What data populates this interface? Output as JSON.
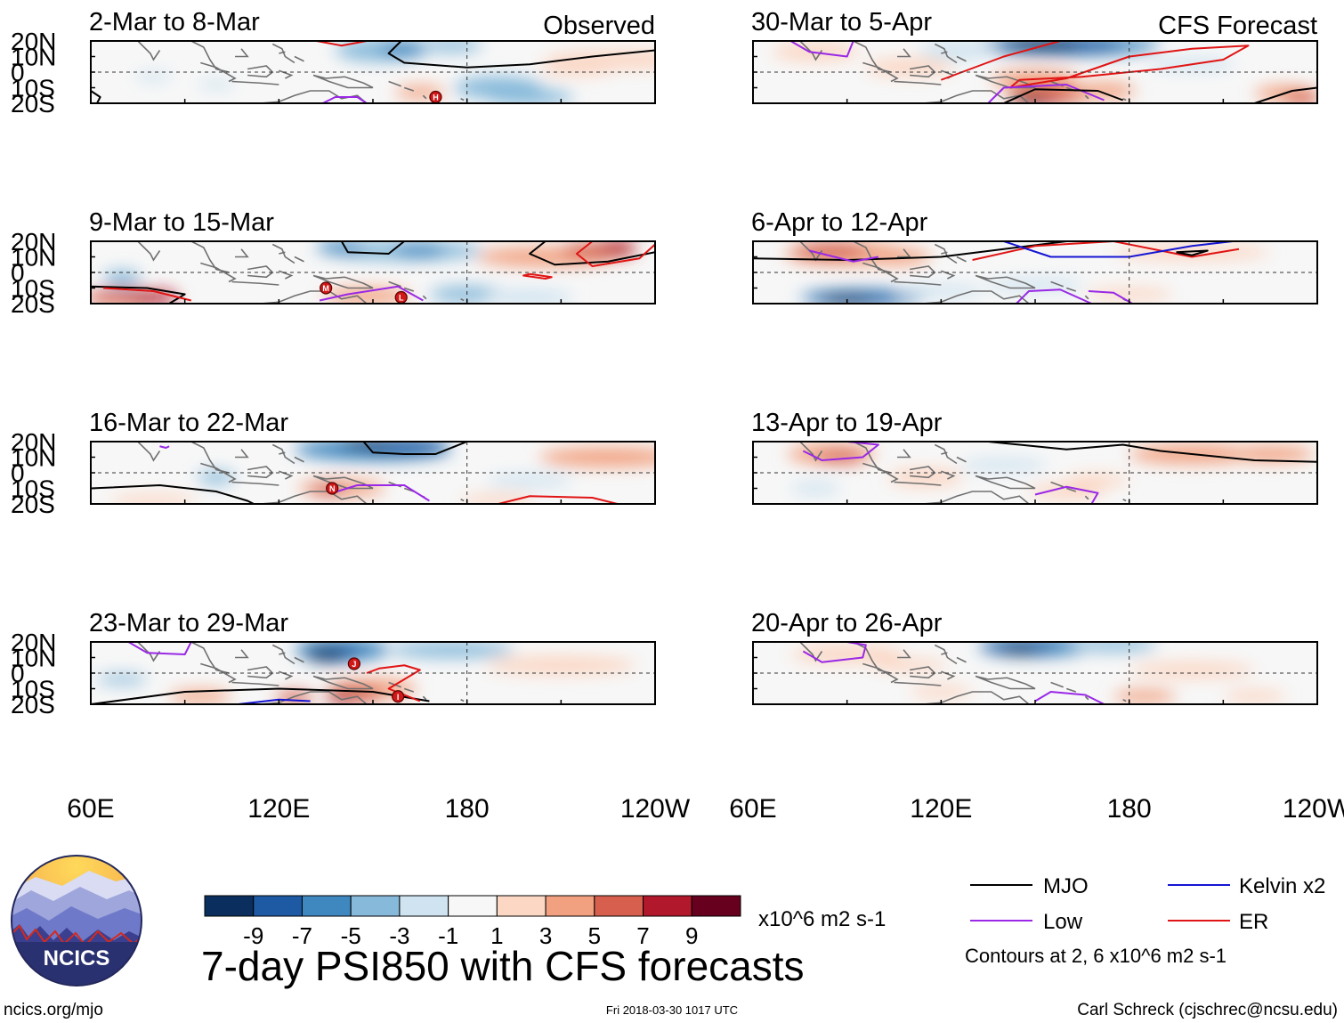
{
  "chart_data": {
    "type": "heatmap",
    "title": "7-day PSI850 with CFS forecasts",
    "variable": "PSI850 anomaly",
    "units": "x10^6 m2 s-1",
    "x_ticks": [
      "60E",
      "120E",
      "180",
      "120W"
    ],
    "x_range_deg_east": [
      60,
      240
    ],
    "y_ticks": [
      "20N",
      "10N",
      "0",
      "10S",
      "20S"
    ],
    "y_range_deg": [
      -20,
      20
    ],
    "observed_label": "Observed",
    "forecast_label": "CFS Forecast",
    "panels": [
      {
        "label": "2-Mar to 8-Mar",
        "source": "Observed",
        "storms": [
          {
            "id": "H",
            "lon": 170,
            "lat": -16
          }
        ]
      },
      {
        "label": "9-Mar to 15-Mar",
        "source": "Observed",
        "storms": [
          {
            "id": "M",
            "lon": 135,
            "lat": -10
          },
          {
            "id": "L",
            "lon": 159,
            "lat": -16
          }
        ]
      },
      {
        "label": "16-Mar to 22-Mar",
        "source": "Observed",
        "storms": [
          {
            "id": "N",
            "lon": 137,
            "lat": -10
          }
        ]
      },
      {
        "label": "23-Mar to 29-Mar",
        "source": "Observed",
        "storms": [
          {
            "id": "J",
            "lon": 144,
            "lat": 6
          },
          {
            "id": "I",
            "lon": 158,
            "lat": -15
          }
        ]
      },
      {
        "label": "30-Mar to 5-Apr",
        "source": "CFS Forecast",
        "storms": []
      },
      {
        "label": "6-Apr to 12-Apr",
        "source": "CFS Forecast",
        "storms": []
      },
      {
        "label": "13-Apr to 19-Apr",
        "source": "CFS Forecast",
        "storms": []
      },
      {
        "label": "20-Apr to 26-Apr",
        "source": "CFS Forecast",
        "storms": []
      }
    ],
    "colorbar": {
      "tick_labels": [
        "-9",
        "-7",
        "-5",
        "-3",
        "-1",
        "1",
        "3",
        "5",
        "7",
        "9"
      ],
      "colors": [
        "#0a2f5e",
        "#1d5aa3",
        "#3f87bf",
        "#86b9da",
        "#cfe3f0",
        "#f7f7f7",
        "#fbd7c4",
        "#f2a180",
        "#d6604d",
        "#b2182b",
        "#67001f"
      ],
      "units_label": "x10^6 m2 s-1"
    },
    "legend": {
      "items": [
        {
          "name": "MJO",
          "color": "#000000"
        },
        {
          "name": "Kelvin x2",
          "color": "#1515d4"
        },
        {
          "name": "Low",
          "color": "#9a28e6"
        },
        {
          "name": "ER",
          "color": "#e01414"
        }
      ],
      "contour_note": "Contours at 2, 6 x10^6 m2 s-1"
    }
  },
  "footer": {
    "logo_text": "NCICS",
    "website": "ncics.org/mjo",
    "timestamp": "Fri 2018-03-30 1017 UTC",
    "credit": "Carl Schreck (cjschrec@ncsu.edu)"
  }
}
